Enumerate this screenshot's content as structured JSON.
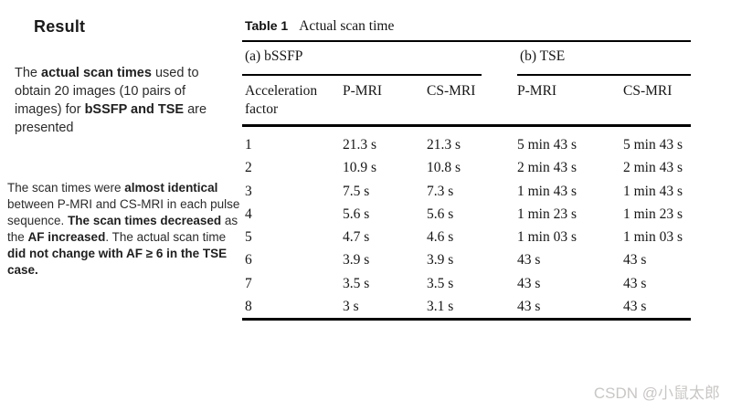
{
  "left_panel": {
    "heading": "Result",
    "paragraph1": {
      "segments": [
        {
          "text": "The ",
          "bold": false
        },
        {
          "text": "actual scan times",
          "bold": true
        },
        {
          "text": " used to obtain 20 images (10 pairs of images) for ",
          "bold": false
        },
        {
          "text": "bSSFP and TSE",
          "bold": true
        },
        {
          "text": " are presented",
          "bold": false
        }
      ]
    },
    "paragraph2": {
      "segments": [
        {
          "text": "The scan times were ",
          "bold": false
        },
        {
          "text": "almost identical",
          "bold": true
        },
        {
          "text": " between P-MRI and CS-MRI in each pulse sequence. ",
          "bold": false
        },
        {
          "text": "The scan times decreased",
          "bold": true
        },
        {
          "text": " as the ",
          "bold": false
        },
        {
          "text": "AF increased",
          "bold": true
        },
        {
          "text": ". The actual scan time ",
          "bold": false
        },
        {
          "text": "did not change with AF ≥ 6 in the TSE case.",
          "bold": true
        }
      ]
    }
  },
  "table": {
    "label": "Table 1",
    "caption": "Actual scan time",
    "groups": [
      {
        "label": "(a) bSSFP"
      },
      {
        "label": "(b) TSE"
      }
    ],
    "columns": [
      "Acceleration factor",
      "P-MRI",
      "CS-MRI",
      "P-MRI",
      "CS-MRI"
    ],
    "rows": [
      {
        "af": "1",
        "bssfp_pmri": "21.3 s",
        "bssfp_csmri": "21.3 s",
        "tse_pmri": "5 min 43 s",
        "tse_csmri": "5 min 43 s"
      },
      {
        "af": "2",
        "bssfp_pmri": "10.9 s",
        "bssfp_csmri": "10.8 s",
        "tse_pmri": "2 min 43 s",
        "tse_csmri": "2 min 43 s"
      },
      {
        "af": "3",
        "bssfp_pmri": "7.5 s",
        "bssfp_csmri": "7.3 s",
        "tse_pmri": "1 min 43 s",
        "tse_csmri": "1 min 43 s"
      },
      {
        "af": "4",
        "bssfp_pmri": "5.6 s",
        "bssfp_csmri": "5.6 s",
        "tse_pmri": "1 min 23 s",
        "tse_csmri": "1 min 23 s"
      },
      {
        "af": "5",
        "bssfp_pmri": "4.7 s",
        "bssfp_csmri": "4.6 s",
        "tse_pmri": "1 min 03 s",
        "tse_csmri": "1 min 03 s"
      },
      {
        "af": "6",
        "bssfp_pmri": "3.9 s",
        "bssfp_csmri": "3.9 s",
        "tse_pmri": "43 s",
        "tse_csmri": "43 s"
      },
      {
        "af": "7",
        "bssfp_pmri": "3.5 s",
        "bssfp_csmri": "3.5 s",
        "tse_pmri": "43 s",
        "tse_csmri": "43 s"
      },
      {
        "af": "8",
        "bssfp_pmri": "3 s",
        "bssfp_csmri": "3.1 s",
        "tse_pmri": "43 s",
        "tse_csmri": "43 s"
      }
    ]
  },
  "watermark": {
    "text": "CSDN @小鼠太郎",
    "color": "#c9c7c5"
  }
}
